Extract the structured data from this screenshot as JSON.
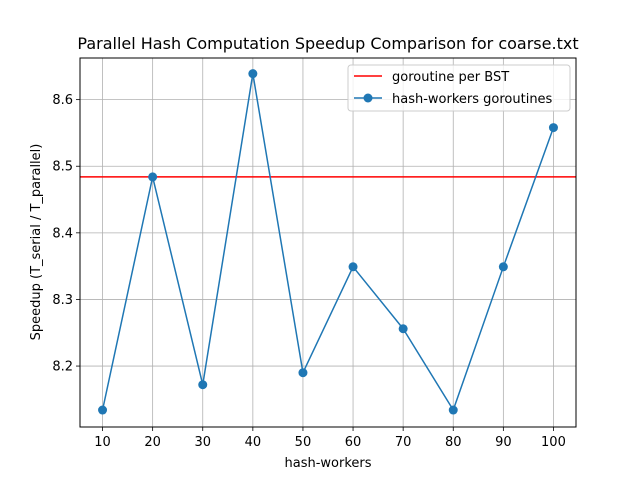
{
  "chart_data": {
    "type": "line",
    "title": "Parallel Hash Computation Speedup Comparison for coarse.txt",
    "xlabel": "hash-workers",
    "ylabel": "Speedup (T_serial / T_parallel)",
    "x": [
      10,
      20,
      30,
      40,
      50,
      60,
      70,
      80,
      90,
      100
    ],
    "xticks": [
      10,
      20,
      30,
      40,
      50,
      60,
      70,
      80,
      90,
      100
    ],
    "yticks": [
      8.2,
      8.3,
      8.4,
      8.5,
      8.6
    ],
    "xlim": [
      5.5,
      104.5
    ],
    "ylim": [
      8.1085,
      8.6625
    ],
    "grid": true,
    "legend_position": "top-right",
    "series": [
      {
        "name": "goroutine per BST",
        "kind": "hline",
        "color": "#ff0000",
        "value": 8.484
      },
      {
        "name": "hash-workers goroutines",
        "kind": "line-marker",
        "color": "#1f77b4",
        "values": [
          8.134,
          8.484,
          8.172,
          8.639,
          8.19,
          8.349,
          8.256,
          8.134,
          8.349,
          8.558
        ]
      }
    ]
  }
}
